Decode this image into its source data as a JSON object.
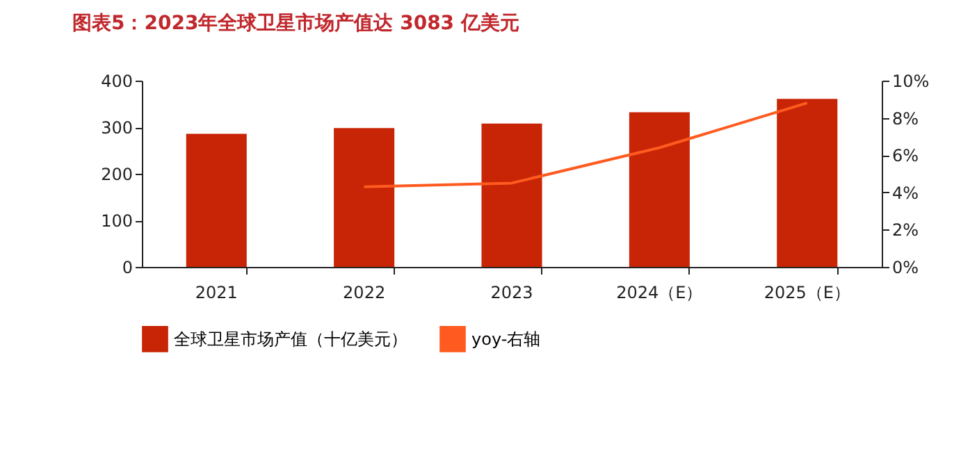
{
  "chart_data": {
    "type": "bar",
    "title": "图表5：2023年全球卫星市场产值达 3083 亿美元",
    "categories": [
      "2021",
      "2022",
      "2023",
      "2024（E）",
      "2025（E）"
    ],
    "series": [
      {
        "name": "全球卫星市场产值（十亿美元）",
        "color": "#c82506",
        "values": [
          286,
          298,
          308,
          332,
          361
        ]
      },
      {
        "name": "yoy-右轴",
        "type": "line",
        "axis": "y2",
        "color": "#ff5a1f",
        "values": [
          null,
          4.3,
          4.5,
          6.4,
          8.8
        ]
      }
    ],
    "ylim": [
      0,
      400
    ],
    "yticks": [
      0,
      100,
      200,
      300,
      400
    ],
    "y2lim": [
      0,
      10
    ],
    "y2ticks": [
      {
        "value": 0,
        "label": "0%"
      },
      {
        "value": 2,
        "label": "2%"
      },
      {
        "value": 4,
        "label": "4%"
      },
      {
        "value": 6,
        "label": "6%"
      },
      {
        "value": 8,
        "label": "8%"
      },
      {
        "value": 10,
        "label": "10%"
      }
    ],
    "grid": false,
    "legend": "bottom"
  }
}
